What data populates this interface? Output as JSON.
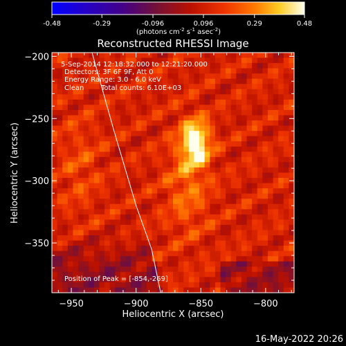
{
  "colorbar": {
    "tick_labels": [
      "-0.48",
      "-0.29",
      "-0.096",
      "0.096",
      "0.29",
      "0.48"
    ],
    "min": -0.48,
    "max": 0.48,
    "label_prefix": "(photons cm",
    "label_exp1": "-2",
    "label_mid": " s",
    "label_exp2": "-1",
    "label_mid2": " asec",
    "label_exp3": "-2",
    "label_suffix": ")"
  },
  "chart_data": {
    "type": "heatmap",
    "title": "Reconstructed RHESSI Image",
    "xlabel": "Heliocentric X (arcsec)",
    "ylabel": "Heliocentric Y (arcsec)",
    "xlim": [
      -965,
      -778
    ],
    "ylim": [
      -390,
      -197
    ],
    "x_ticks": [
      -950,
      -900,
      -850,
      -800
    ],
    "y_ticks": [
      -200,
      -250,
      -300,
      -350
    ],
    "x_tick_labels": [
      "−950",
      "−900",
      "−850",
      "−800"
    ],
    "y_tick_labels": [
      "−200",
      "−250",
      "−300",
      "−350"
    ],
    "annotations": {
      "time_range": "5-Sep-2014 12:18:32.000 to 12:21:20.000",
      "detectors": "Detectors: 3F 6F 9F, Att 0",
      "energy": "Energy Range: 3.0 - 6.0 keV",
      "method": "Clean",
      "counts": "Total counts: 6.10E+03",
      "peak": "Position of Peak = [-854,-269]"
    },
    "peak": [
      -854,
      -269
    ],
    "limb_points": [
      [
        -934,
        -197
      ],
      [
        -917,
        -260
      ],
      [
        -900,
        -320
      ],
      [
        -888,
        -355
      ],
      [
        -881,
        -390
      ]
    ],
    "colormap": "red-temperature",
    "colors": {
      "background": "#000000",
      "limb": "#ffffff"
    }
  },
  "footer": {
    "timestamp": "16-May-2022 20:26"
  }
}
